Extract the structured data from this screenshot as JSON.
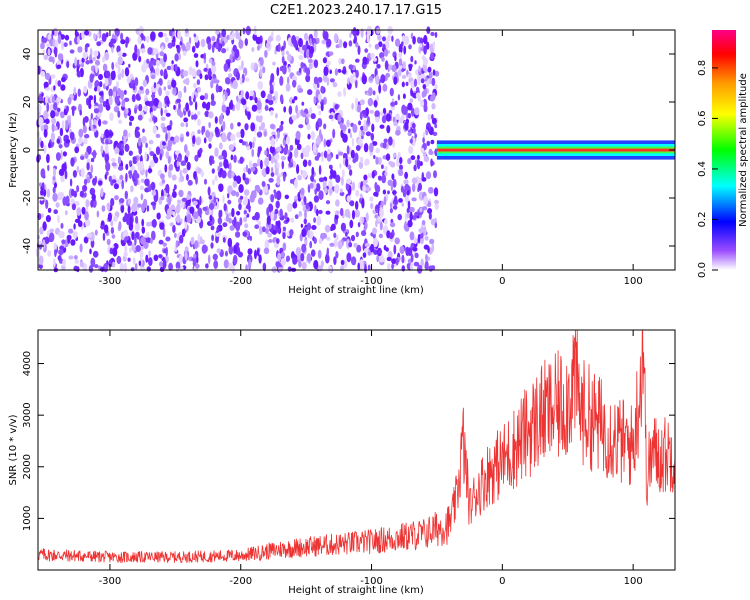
{
  "title": "C2E1.2023.240.17.17.G15",
  "chart_data": [
    {
      "type": "heatmap",
      "xlabel": "Height of straight line (km)",
      "ylabel": "Frequency (Hz)",
      "xlim": [
        -355,
        132
      ],
      "ylim": [
        -50,
        50
      ],
      "xticks": [
        -300,
        -200,
        -100,
        0,
        100
      ],
      "yticks": [
        -40,
        -20,
        0,
        20,
        40
      ],
      "colorbar": {
        "label": "Normalized spectral amplitude",
        "range": [
          0,
          0.95
        ],
        "ticks": [
          0.0,
          0.2,
          0.4,
          0.6,
          0.8
        ],
        "colors": [
          "#ffffff",
          "#8a2be2",
          "#0000ff",
          "#00ffff",
          "#00ff00",
          "#ffff00",
          "#ff8000",
          "#ff0000",
          "#ff0088"
        ]
      },
      "description": [
        {
          "x_range": [
            -355,
            -50
          ],
          "freq_range": [
            -50,
            50
          ],
          "amplitude": 0.1
        },
        {
          "x_range": [
            -50,
            132
          ],
          "freq_range": [
            -2,
            2
          ],
          "amplitude": 0.9
        }
      ]
    },
    {
      "type": "line",
      "xlabel": "Height of straight line (km)",
      "ylabel": "SNR (10 * v/v)",
      "xlim": [
        -355,
        132
      ],
      "ylim": [
        0,
        4650
      ],
      "xticks": [
        -300,
        -200,
        -100,
        0,
        100
      ],
      "yticks": [
        1000,
        2000,
        3000,
        4000
      ],
      "color": "#ee3333",
      "series": [
        {
          "x": [
            -355,
            -300,
            -250,
            -200,
            -170,
            -150,
            -100,
            -60,
            -40,
            -35,
            -30,
            -25,
            -20,
            -10,
            0,
            10,
            20,
            30,
            40,
            50,
            55,
            60,
            70,
            80,
            90,
            100,
            105,
            108,
            110,
            115,
            120,
            132
          ],
          "y": [
            300,
            250,
            250,
            280,
            400,
            450,
            550,
            700,
            900,
            1400,
            2500,
            1200,
            1500,
            1900,
            2100,
            2400,
            2700,
            3000,
            3100,
            3300,
            3800,
            3100,
            2900,
            2700,
            2500,
            2400,
            3500,
            4600,
            1800,
            2300,
            2200,
            2300
          ]
        }
      ]
    }
  ]
}
